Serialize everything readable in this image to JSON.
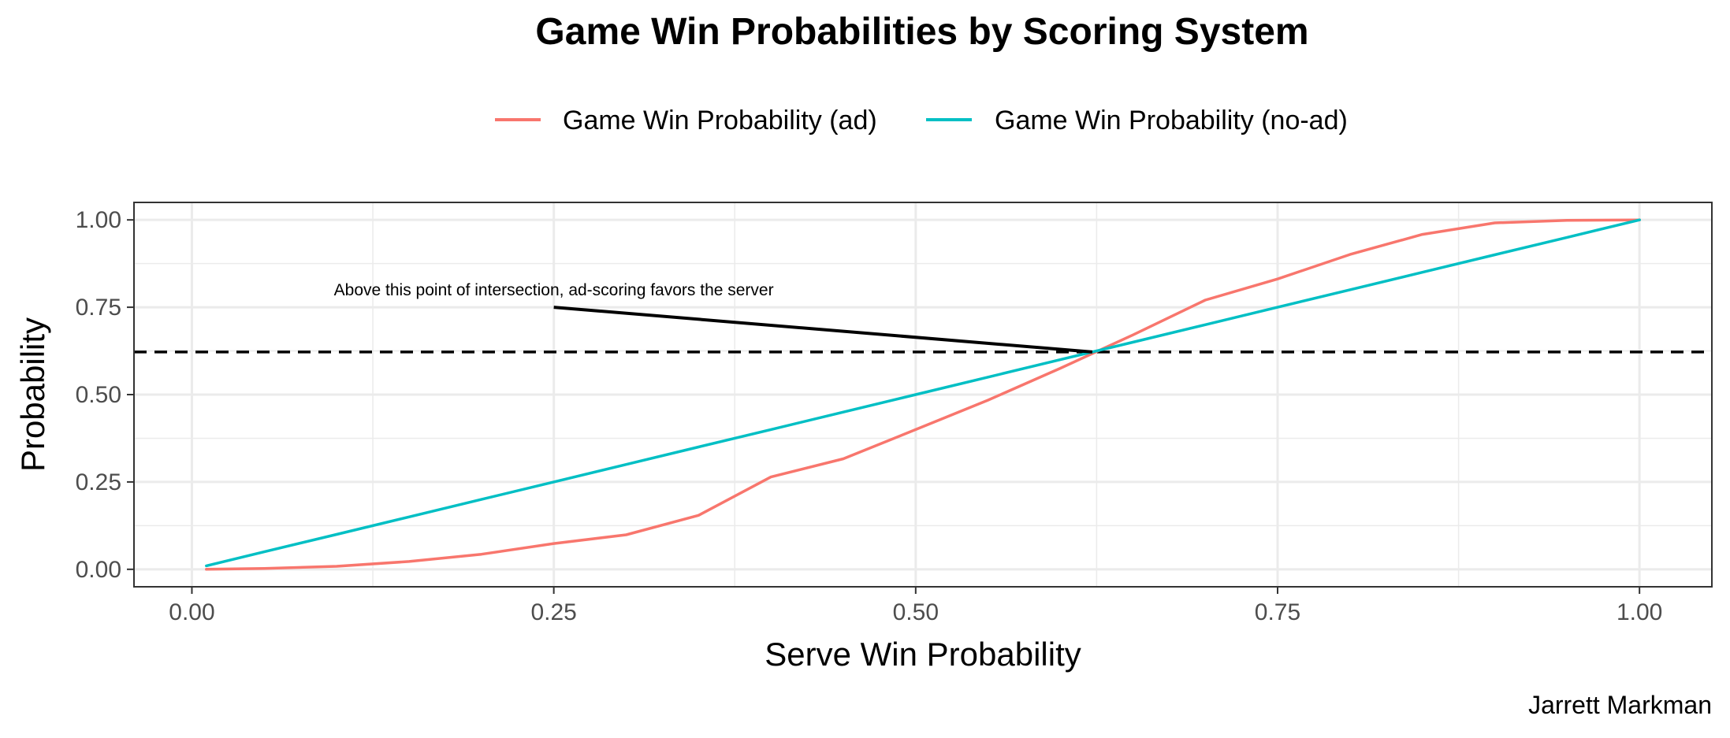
{
  "chart_data": {
    "type": "line",
    "title": "Game Win Probabilities by Scoring System",
    "xlabel": "Serve Win Probability",
    "ylabel": "Probability",
    "caption": "Jarrett Markman",
    "xlim": [
      -0.04,
      1.05
    ],
    "ylim": [
      -0.05,
      1.05
    ],
    "x_ticks": [
      0,
      0.25,
      0.5,
      0.75,
      1
    ],
    "x_tick_labels": [
      "0.00",
      "0.25",
      "0.50",
      "0.75",
      "1.00"
    ],
    "y_ticks": [
      0,
      0.25,
      0.5,
      0.75,
      1
    ],
    "y_tick_labels": [
      "0.00",
      "0.25",
      "0.50",
      "0.75",
      "1.00"
    ],
    "grid": true,
    "legend_position": "top",
    "x": [
      0.01,
      0.05,
      0.1,
      0.15,
      0.2,
      0.25,
      0.3,
      0.35,
      0.4,
      0.45,
      0.5,
      0.55,
      0.6,
      0.65,
      0.7,
      0.75,
      0.8,
      0.85,
      0.9,
      0.95,
      1.0
    ],
    "series": [
      {
        "name": "Game Win Probability (ad)",
        "color": "#f8766d",
        "values": [
          0.0,
          0.0022,
          0.0086,
          0.0223,
          0.0432,
          0.0738,
          0.0988,
          0.1545,
          0.2642,
          0.3164,
          0.4,
          0.4843,
          0.5756,
          0.6706,
          0.7705,
          0.8309,
          0.9011,
          0.9585,
          0.9915,
          0.9986,
          1.0
        ]
      },
      {
        "name": "Game Win Probability (no-ad)",
        "color": "#00bfc4",
        "values": [
          0.01,
          0.05,
          0.1,
          0.15,
          0.2,
          0.25,
          0.3,
          0.35,
          0.4,
          0.45,
          0.5,
          0.55,
          0.6,
          0.65,
          0.7,
          0.75,
          0.8,
          0.85,
          0.9,
          0.95,
          1.0
        ]
      }
    ],
    "reference_line": {
      "orientation": "horizontal",
      "y": 0.622,
      "style": "dashed",
      "color": "#000000"
    },
    "annotation": {
      "text": "Above this point of intersection, ad-scoring favors the server",
      "segment": {
        "x1": 0.25,
        "y1": 0.75,
        "x2": 0.622,
        "y2": 0.622
      }
    }
  }
}
